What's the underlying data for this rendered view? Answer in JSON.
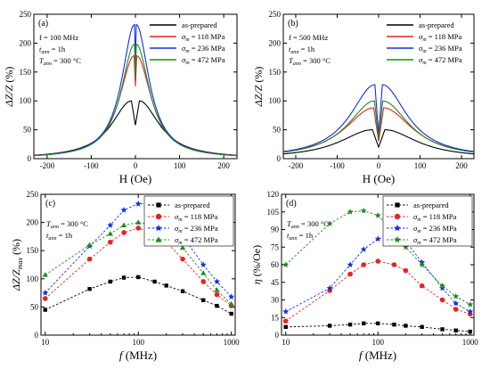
{
  "chart_data": [
    {
      "type": "line",
      "panel_label": "(a)",
      "xlabel": "H (Oe)",
      "ylabel": "ΔZ/Z (%)",
      "xlim": [
        -230,
        230
      ],
      "ylim": [
        0,
        250
      ],
      "xticks": [
        -200,
        -100,
        0,
        100,
        200
      ],
      "yticks": [
        0,
        50,
        100,
        150,
        200,
        250
      ],
      "annotations": [
        {
          "main": "f = 100 MHz"
        },
        {
          "main": "t",
          "sub": "ann",
          "tail": " = 1h"
        },
        {
          "main": "T",
          "sub": "ann",
          "tail": " = 300 °C"
        }
      ],
      "legend": {
        "position": "top-right",
        "entries": [
          {
            "main": "as-prepared",
            "sub": ""
          },
          {
            "main": "σ",
            "sub": "m",
            "tail": " = 118 MPa"
          },
          {
            "main": "σ",
            "sub": "m",
            "tail": " = 236 MPa"
          },
          {
            "main": "σ",
            "sub": "m",
            "tail": " = 472 MPa"
          }
        ]
      },
      "series": [
        {
          "name": "as-prepared",
          "color": "#000000",
          "peak": 100,
          "peak_h": 9,
          "dip": 58,
          "width": 55
        },
        {
          "name": "σm = 118 MPa",
          "color": "#e8231f",
          "peak": 178,
          "peak_h": 3,
          "dip": 125,
          "width": 40
        },
        {
          "name": "σm = 236 MPa",
          "color": "#1030e0",
          "peak": 232,
          "peak_h": 2,
          "dip": 170,
          "width": 35
        },
        {
          "name": "σm = 472 MPa",
          "color": "#1f8a1f",
          "peak": 198,
          "peak_h": 2,
          "dip": 140,
          "width": 37
        }
      ]
    },
    {
      "type": "line",
      "panel_label": "(b)",
      "xlabel": "H (Oe)",
      "ylabel": "ΔZ/Z (%)",
      "xlim": [
        -230,
        230
      ],
      "ylim": [
        0,
        250
      ],
      "xticks": [
        -200,
        -100,
        0,
        100,
        200
      ],
      "yticks": [
        0,
        50,
        100,
        150,
        200,
        250
      ],
      "annotations": [
        {
          "main": "f = 500 MHz"
        },
        {
          "main": "t",
          "sub": "ann",
          "tail": " = 1h"
        },
        {
          "main": "T",
          "sub": "ann",
          "tail": " = 300 °C"
        }
      ],
      "legend": {
        "position": "top-right",
        "entries": [
          {
            "main": "as-prepared",
            "sub": ""
          },
          {
            "main": "σ",
            "sub": "m",
            "tail": " = 118 MPa"
          },
          {
            "main": "σ",
            "sub": "m",
            "tail": " = 236 MPa"
          },
          {
            "main": "σ",
            "sub": "m",
            "tail": " = 472 MPa"
          }
        ]
      },
      "series": [
        {
          "name": "as-prepared",
          "color": "#000000",
          "peak": 50,
          "peak_h": 15,
          "dip": 20,
          "width": 95
        },
        {
          "name": "σm = 118 MPa",
          "color": "#e8231f",
          "peak": 88,
          "peak_h": 12,
          "dip": 30,
          "width": 85
        },
        {
          "name": "σm = 236 MPa",
          "color": "#1030e0",
          "peak": 128,
          "peak_h": 9,
          "dip": 42,
          "width": 72
        },
        {
          "name": "σm = 472 MPa",
          "color": "#1f8a1f",
          "peak": 100,
          "peak_h": 10,
          "dip": 35,
          "width": 78
        }
      ]
    },
    {
      "type": "scatter",
      "panel_label": "(c)",
      "xlabel": "f (MHz)",
      "ylabel": "ΔZ/Z max (%)",
      "xscale": "log",
      "xlim": [
        9,
        1100
      ],
      "ylim": [
        0,
        250
      ],
      "xticks": [
        10,
        100,
        1000
      ],
      "yticks": [
        0,
        50,
        100,
        150,
        200,
        250
      ],
      "annotations": [
        {
          "main": "T",
          "sub": "ann",
          "tail": " = 300 °C"
        },
        {
          "main": "t",
          "sub": "ann",
          "tail": " = 1h"
        }
      ],
      "legend": {
        "position": "top-right",
        "entries": [
          {
            "main": "as-prepared",
            "sub": ""
          },
          {
            "main": "σ",
            "sub": "m",
            "tail": " = 118 MPa"
          },
          {
            "main": "σ",
            "sub": "m",
            "tail": " = 236 MPa"
          },
          {
            "main": "σ",
            "sub": "m",
            "tail": " = 472 MPa"
          }
        ]
      },
      "x": [
        10,
        30,
        50,
        70,
        100,
        150,
        200,
        300,
        500,
        700,
        1000
      ],
      "series": [
        {
          "name": "as-prepared",
          "color": "#000000",
          "marker": "square",
          "values": [
            45,
            82,
            95,
            102,
            103,
            95,
            88,
            78,
            62,
            52,
            38
          ]
        },
        {
          "name": "σm = 118 MPa",
          "color": "#e8231f",
          "marker": "circle",
          "values": [
            65,
            135,
            165,
            182,
            190,
            180,
            165,
            135,
            95,
            72,
            52
          ]
        },
        {
          "name": "σm = 236 MPa",
          "color": "#1030e0",
          "marker": "star",
          "values": [
            75,
            158,
            195,
            222,
            233,
            233,
            215,
            175,
            125,
            95,
            68
          ]
        },
        {
          "name": "σm = 472 MPa",
          "color": "#1f8a1f",
          "marker": "triangle",
          "values": [
            107,
            160,
            180,
            195,
            200,
            195,
            185,
            155,
            110,
            80,
            55
          ]
        }
      ]
    },
    {
      "type": "scatter",
      "panel_label": "(d)",
      "xlabel": "f (MHz)",
      "ylabel": "η (%/Oe)",
      "xscale": "log",
      "xlim": [
        9,
        1100
      ],
      "ylim": [
        0,
        120
      ],
      "xticks": [
        10,
        100,
        1000
      ],
      "yticks": [
        0,
        15,
        30,
        45,
        60,
        75,
        90,
        105,
        120
      ],
      "annotations": [
        {
          "main": "T",
          "sub": "ann",
          "tail": " = 300 °C"
        },
        {
          "main": "t",
          "sub": "ann",
          "tail": " = 1h"
        }
      ],
      "legend": {
        "position": "top-right",
        "entries": [
          {
            "main": "as-prepared",
            "sub": ""
          },
          {
            "main": "σ",
            "sub": "m",
            "tail": " = 118 MPa"
          },
          {
            "main": "σ",
            "sub": "m",
            "tail": " = 236 MPa"
          },
          {
            "main": "σ",
            "sub": "m",
            "tail": " = 472 MPa"
          }
        ]
      },
      "x": [
        10,
        30,
        50,
        70,
        100,
        150,
        200,
        300,
        500,
        700,
        1000
      ],
      "series": [
        {
          "name": "as-prepared",
          "color": "#000000",
          "marker": "square",
          "values": [
            7,
            8,
            9,
            10,
            10,
            9,
            8,
            7,
            5,
            4,
            3
          ]
        },
        {
          "name": "σm = 118 MPa",
          "color": "#e8231f",
          "marker": "circle",
          "values": [
            12,
            38,
            52,
            60,
            63,
            60,
            55,
            42,
            30,
            22,
            18
          ]
        },
        {
          "name": "σm = 236 MPa",
          "color": "#1030e0",
          "marker": "star",
          "values": [
            20,
            40,
            60,
            73,
            82,
            85,
            80,
            62,
            40,
            27,
            20
          ]
        },
        {
          "name": "σm = 472 MPa",
          "color": "#1f8a1f",
          "marker": "star",
          "values": [
            60,
            95,
            105,
            106,
            102,
            88,
            75,
            60,
            42,
            33,
            26
          ]
        }
      ]
    }
  ]
}
